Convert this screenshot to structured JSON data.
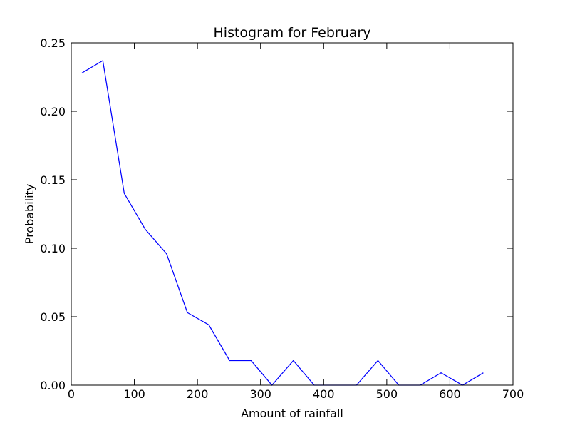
{
  "chart_data": {
    "type": "line",
    "title": "Histogram for February",
    "xlabel": "Amount of rainfall",
    "ylabel": "Probability",
    "xlim": [
      0,
      700
    ],
    "ylim": [
      0,
      0.25
    ],
    "xticks": [
      0,
      100,
      200,
      300,
      400,
      500,
      600,
      700
    ],
    "xtick_labels": [
      "0",
      "100",
      "200",
      "300",
      "400",
      "500",
      "600",
      "700"
    ],
    "yticks": [
      0,
      0.05,
      0.1,
      0.15,
      0.2,
      0.25
    ],
    "ytick_labels": [
      "0.00",
      "0.05",
      "0.10",
      "0.15",
      "0.20",
      "0.25"
    ],
    "grid": false,
    "series": [
      {
        "color": "#0000ff",
        "x": [
          17,
          50,
          84,
          117,
          151,
          184,
          218,
          251,
          285,
          318,
          352,
          385,
          419,
          452,
          486,
          519,
          553,
          586,
          620,
          653
        ],
        "y": [
          0.228,
          0.237,
          0.14,
          0.114,
          0.096,
          0.053,
          0.044,
          0.018,
          0.018,
          0.0,
          0.018,
          0.0,
          0.0,
          0.0,
          0.018,
          0.0,
          0.0,
          0.009,
          0.0,
          0.009
        ]
      }
    ]
  }
}
